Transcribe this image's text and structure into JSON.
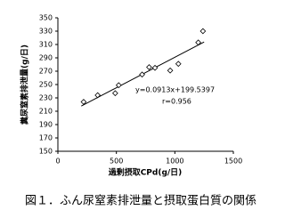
{
  "chart_data": {
    "type": "scatter",
    "caption": "図１．ふん尿窒素排泄量と摂取蛋白質の関係",
    "xlabel": "過剰摂取CPd(g/日)",
    "ylabel": "糞尿窒素排泄量(g/日)",
    "annotations": [
      "y=0.0913x+199.5397",
      "r=0.956"
    ],
    "x": [
      220,
      340,
      490,
      520,
      720,
      780,
      830,
      960,
      1030,
      1200,
      1240
    ],
    "values": [
      224,
      234,
      237,
      249,
      265,
      276,
      275,
      271,
      281,
      313,
      330
    ],
    "trendline": {
      "x": [
        200,
        1250
      ],
      "values": [
        217.8,
        313.7
      ]
    },
    "xlim": [
      0,
      1500
    ],
    "xticks": [
      0,
      500,
      1000,
      1500
    ],
    "ylim": [
      150,
      350
    ],
    "yticks": [
      150,
      170,
      190,
      210,
      230,
      250,
      270,
      290,
      310,
      330,
      350
    ]
  }
}
